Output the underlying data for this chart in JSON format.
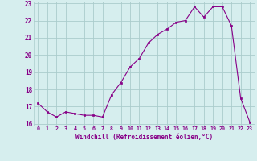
{
  "x": [
    0,
    1,
    2,
    3,
    4,
    5,
    6,
    7,
    8,
    9,
    10,
    11,
    12,
    13,
    14,
    15,
    16,
    17,
    18,
    19,
    20,
    21,
    22,
    23
  ],
  "y": [
    17.2,
    16.7,
    16.4,
    16.7,
    16.6,
    16.5,
    16.5,
    16.4,
    17.7,
    18.4,
    19.3,
    19.8,
    20.7,
    21.2,
    21.5,
    21.9,
    22.0,
    22.8,
    22.2,
    22.8,
    22.8,
    21.7,
    17.5,
    16.1
  ],
  "line_color": "#880088",
  "marker": "s",
  "marker_size": 2.0,
  "bg_color": "#d6eeee",
  "grid_color": "#aacccc",
  "xlabel": "Windchill (Refroidissement éolien,°C)",
  "xlabel_color": "#880088",
  "tick_color": "#880088",
  "ylim": [
    15.9,
    23.1
  ],
  "xlim": [
    -0.5,
    23.5
  ],
  "yticks": [
    16,
    17,
    18,
    19,
    20,
    21,
    22,
    23
  ],
  "xticks": [
    0,
    1,
    2,
    3,
    4,
    5,
    6,
    7,
    8,
    9,
    10,
    11,
    12,
    13,
    14,
    15,
    16,
    17,
    18,
    19,
    20,
    21,
    22,
    23
  ]
}
